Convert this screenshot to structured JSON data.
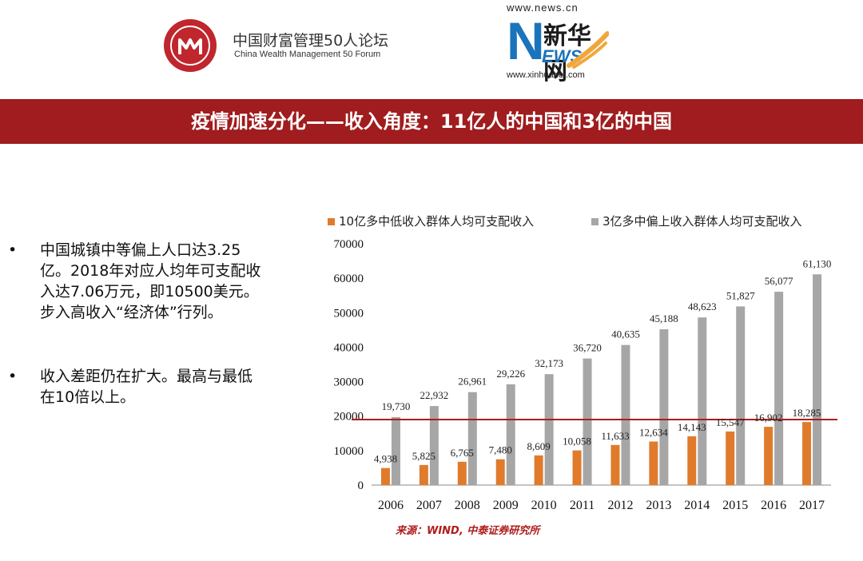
{
  "header": {
    "logo_left": {
      "cn": "中国财富管理50人论坛",
      "en": "China Wealth Management 50 Forum"
    },
    "logo_right": {
      "url_top": "www.news.cn",
      "cn": "新华网",
      "ews": "EWS",
      "url_bottom": "www.xinhuanet.com"
    }
  },
  "title": "疫情加速分化——收入角度：11亿人的中国和3亿的中国",
  "bullets": [
    {
      "dot": "•",
      "text": "中国城镇中等偏上人口达3.25亿。2018年对应人均年可支配收入达7.06万元，即10500美元。步入高收入“经济体”行列。"
    },
    {
      "dot": "•",
      "text": "收入差距仍在扩大。最高与最低在10倍以上。"
    }
  ],
  "source": "来源：WIND, 中泰证券研究所",
  "colors": {
    "title_bar": "#a01c1e",
    "series_low": "#e07b2c",
    "series_high": "#a6a6a6",
    "ref_line": "#b01c1c"
  },
  "chart_data": {
    "type": "bar",
    "categories": [
      "2006",
      "2007",
      "2008",
      "2009",
      "2010",
      "2011",
      "2012",
      "2013",
      "2014",
      "2015",
      "2016",
      "2017"
    ],
    "series": [
      {
        "name": "10亿多中低收入群体人均可支配收入",
        "values": [
          4938,
          5825,
          6765,
          7480,
          8609,
          10058,
          11633,
          12634,
          14143,
          15547,
          16902,
          18285
        ],
        "labels": [
          "4,938",
          "5,825",
          "6,765",
          "7,480",
          "8,609",
          "10,058",
          "11,633",
          "12,634",
          "14,143",
          "15,547",
          "16,902",
          "18,285"
        ]
      },
      {
        "name": "3亿多中偏上收入群体人均可支配收入",
        "values": [
          19730,
          22932,
          26961,
          29226,
          32173,
          36720,
          40635,
          45188,
          48623,
          51827,
          56077,
          61130
        ],
        "labels": [
          "19,730",
          "22,932",
          "26,961",
          "29,226",
          "32,173",
          "36,720",
          "40,635",
          "45,188",
          "48,623",
          "51,827",
          "56,077",
          "61,130"
        ]
      }
    ],
    "yticks": [
      0,
      10000,
      20000,
      30000,
      40000,
      50000,
      60000,
      70000
    ],
    "ylim": [
      0,
      70000
    ],
    "reference_line": 19000,
    "legend": "top",
    "grid": false
  }
}
